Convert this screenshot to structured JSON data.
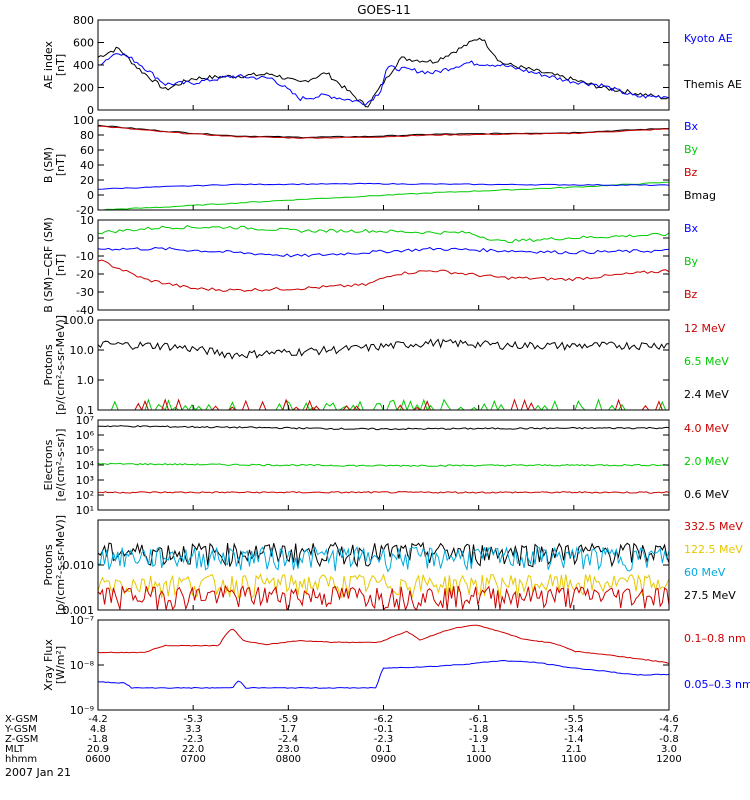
{
  "figure": {
    "title": "GOES-11",
    "date": "2007 Jan 21"
  },
  "chart_data": [
    {
      "type": "line",
      "id": "ae",
      "scale": "linear",
      "ylabel": [
        "AE index",
        "[nT]"
      ],
      "yticks": [
        "800",
        "600",
        "400",
        "200",
        "0"
      ],
      "ytick_values": [
        800,
        600,
        400,
        200,
        0
      ],
      "ylim": [
        0,
        800
      ],
      "series": [
        {
          "name": "Kyoto AE",
          "color": "#0000ff",
          "anchors": [
            [
              0,
              400
            ],
            [
              0.3,
              520
            ],
            [
              0.6,
              420
            ],
            [
              1,
              230
            ],
            [
              1.4,
              240
            ],
            [
              2,
              300
            ],
            [
              2.6,
              280
            ],
            [
              3,
              100
            ],
            [
              3.4,
              130
            ],
            [
              4,
              60
            ],
            [
              4.2,
              160
            ],
            [
              4.3,
              380
            ],
            [
              5,
              330
            ],
            [
              5.5,
              420
            ],
            [
              6,
              400
            ],
            [
              6.5,
              330
            ],
            [
              7,
              260
            ],
            [
              7.5,
              220
            ],
            [
              8,
              120
            ],
            [
              8.5,
              120
            ]
          ]
        },
        {
          "name": "Themis AE",
          "color": "#000000",
          "anchors": [
            [
              0,
              470
            ],
            [
              0.3,
              550
            ],
            [
              0.6,
              370
            ],
            [
              1,
              180
            ],
            [
              1.4,
              280
            ],
            [
              2,
              300
            ],
            [
              2.6,
              320
            ],
            [
              3,
              240
            ],
            [
              3.4,
              330
            ],
            [
              4,
              30
            ],
            [
              4.2,
              200
            ],
            [
              4.5,
              460
            ],
            [
              5,
              430
            ],
            [
              5.4,
              550
            ],
            [
              5.7,
              650
            ],
            [
              6,
              420
            ],
            [
              6.5,
              350
            ],
            [
              7,
              280
            ],
            [
              7.5,
              200
            ],
            [
              8,
              150
            ],
            [
              8.5,
              100
            ]
          ]
        }
      ]
    },
    {
      "type": "line",
      "id": "b",
      "scale": "linear",
      "ylabel": [
        "B (SM)",
        "[nT]"
      ],
      "yticks": [
        "100",
        "80",
        "60",
        "40",
        "20",
        "0",
        "-20"
      ],
      "ytick_values": [
        100,
        80,
        60,
        40,
        20,
        0,
        -20
      ],
      "ylim": [
        -20,
        100
      ],
      "series": [
        {
          "name": "Bx",
          "color": "#0000ff",
          "anchors": [
            [
              0,
              8
            ],
            [
              2,
              14
            ],
            [
              4,
              15
            ],
            [
              6,
              14
            ],
            [
              8.5,
              13
            ]
          ]
        },
        {
          "name": "By",
          "color": "#00cc00",
          "anchors": [
            [
              0,
              -20
            ],
            [
              1,
              -16
            ],
            [
              3,
              -6
            ],
            [
              5,
              3
            ],
            [
              7,
              10
            ],
            [
              8.5,
              17
            ]
          ]
        },
        {
          "name": "Bz",
          "color": "#cc0000",
          "anchors": [
            [
              0,
              92
            ],
            [
              1,
              84
            ],
            [
              2,
              78
            ],
            [
              3,
              76
            ],
            [
              4,
              77
            ],
            [
              5,
              80
            ],
            [
              6,
              81
            ],
            [
              7,
              82
            ],
            [
              8.5,
              88
            ]
          ]
        },
        {
          "name": "Bmag",
          "color": "#000000",
          "anchors": [
            [
              0,
              93
            ],
            [
              1,
              85
            ],
            [
              2,
              79
            ],
            [
              3,
              77
            ],
            [
              4,
              78
            ],
            [
              5,
              81
            ],
            [
              6,
              82
            ],
            [
              7,
              83
            ],
            [
              8.5,
              89
            ]
          ]
        }
      ]
    },
    {
      "type": "line",
      "id": "bdiff",
      "scale": "linear",
      "ylabel": [
        "B (SM)−CRF (SM)",
        "[nT]"
      ],
      "yticks": [
        "10",
        "0",
        "-10",
        "-20",
        "-30",
        "-40"
      ],
      "ytick_values": [
        10,
        0,
        -10,
        -20,
        -30,
        -40
      ],
      "ylim": [
        -40,
        10
      ],
      "series": [
        {
          "name": "Bx",
          "color": "#0000ff",
          "anchors": [
            [
              0,
              -6
            ],
            [
              1,
              -6
            ],
            [
              2,
              -8
            ],
            [
              3,
              -10
            ],
            [
              4,
              -8
            ],
            [
              5,
              -6
            ],
            [
              6,
              -7
            ],
            [
              7,
              -8
            ],
            [
              8.5,
              -7
            ]
          ]
        },
        {
          "name": "By",
          "color": "#00cc00",
          "anchors": [
            [
              0,
              3
            ],
            [
              1,
              6
            ],
            [
              2,
              6
            ],
            [
              3,
              4
            ],
            [
              4,
              4
            ],
            [
              5,
              3
            ],
            [
              5.5,
              3
            ],
            [
              6,
              -2
            ],
            [
              7,
              0
            ],
            [
              8.5,
              2
            ]
          ]
        },
        {
          "name": "Bz",
          "color": "#cc0000",
          "anchors": [
            [
              0,
              -12
            ],
            [
              0.7,
              -23
            ],
            [
              1.4,
              -28
            ],
            [
              2,
              -29
            ],
            [
              3,
              -28
            ],
            [
              4,
              -26
            ],
            [
              4.4,
              -20
            ],
            [
              5,
              -18
            ],
            [
              6,
              -22
            ],
            [
              7,
              -23
            ],
            [
              8.5,
              -18
            ]
          ]
        }
      ]
    },
    {
      "type": "line",
      "id": "hep",
      "scale": "log",
      "ylabel": [
        "Protons",
        "[p/(cm²-s-sr-MeV)]"
      ],
      "yticks": [
        "100.0",
        "10.0",
        "1.0",
        "0.1"
      ],
      "ytick_values": [
        100,
        10,
        1,
        0.1
      ],
      "ylim": [
        0.1,
        100
      ],
      "series": [
        {
          "name": "12 MeV",
          "color": "#cc0000",
          "anchors": [
            [
              0,
              0.1
            ],
            [
              8.5,
              0.1
            ]
          ]
        },
        {
          "name": "6.5 MeV",
          "color": "#00cc00",
          "anchors": [
            [
              0,
              0.1
            ],
            [
              8.5,
              0.1
            ]
          ]
        },
        {
          "name": "2.4 MeV",
          "color": "#000000",
          "anchors": [
            [
              0,
              16
            ],
            [
              1,
              14
            ],
            [
              2,
              7
            ],
            [
              3,
              9
            ],
            [
              4,
              12
            ],
            [
              5,
              18
            ],
            [
              6,
              15
            ],
            [
              7,
              14
            ],
            [
              8.5,
              15
            ]
          ]
        }
      ]
    },
    {
      "type": "line",
      "id": "el",
      "scale": "log",
      "ylabel": [
        "Electrons",
        "[e/(cm²-s-sr)]"
      ],
      "yticks": [
        "10⁷",
        "10⁶",
        "10⁵",
        "10⁴",
        "10³",
        "10²",
        "10¹"
      ],
      "ytick_values": [
        10000000,
        1000000,
        100000,
        10000,
        1000,
        100,
        10
      ],
      "ylim": [
        10,
        10000000
      ],
      "series": [
        {
          "name": "4.0 MeV",
          "color": "#cc0000",
          "anchors": [
            [
              0,
              150
            ],
            [
              8.5,
              150
            ]
          ]
        },
        {
          "name": "2.0 MeV",
          "color": "#00cc00",
          "anchors": [
            [
              0,
              12000
            ],
            [
              4,
              9000
            ],
            [
              8.5,
              10000
            ]
          ]
        },
        {
          "name": "0.6 MeV",
          "color": "#000000",
          "anchors": [
            [
              0,
              4000000
            ],
            [
              4,
              2500000
            ],
            [
              8.5,
              3000000
            ]
          ]
        }
      ]
    },
    {
      "type": "line",
      "id": "lep",
      "scale": "log",
      "ylabel": [
        "Protons",
        "[p/(cm²-s-sr-MeV)]"
      ],
      "yticks": [
        "0.010",
        "0.001"
      ],
      "ytick_values": [
        0.01,
        0.001
      ],
      "ylim": [
        0.001,
        0.1
      ],
      "series": [
        {
          "name": "332.5 MeV",
          "color": "#cc0000",
          "anchors": [
            [
              0,
              0.0022
            ],
            [
              8.5,
              0.0022
            ]
          ]
        },
        {
          "name": "122.5 MeV",
          "color": "#e6c800",
          "anchors": [
            [
              0,
              0.004
            ],
            [
              8.5,
              0.004
            ]
          ]
        },
        {
          "name": "60 MeV",
          "color": "#00aadd",
          "anchors": [
            [
              0,
              0.016
            ],
            [
              8.5,
              0.016
            ]
          ]
        },
        {
          "name": "27.5 MeV",
          "color": "#000000",
          "anchors": [
            [
              0,
              0.02
            ],
            [
              8.5,
              0.02
            ]
          ]
        }
      ]
    },
    {
      "type": "line",
      "id": "xray",
      "scale": "log",
      "ylabel": [
        "Xray Flux",
        "[W/m²]"
      ],
      "yticks": [
        "10⁻⁷",
        "10⁻⁸",
        "10⁻⁹"
      ],
      "ytick_values": [
        1e-07,
        1e-08,
        1e-09
      ],
      "ylim": [
        1e-09,
        1e-07
      ],
      "series": [
        {
          "name": "0.1–0.8 nm",
          "color": "#cc0000",
          "anchors": [
            [
              0,
              1.9e-08
            ],
            [
              0.7,
              1.9e-08
            ],
            [
              1,
              2.7e-08
            ],
            [
              1.8,
              2.7e-08
            ],
            [
              2,
              6.5e-08
            ],
            [
              2.15,
              3.5e-08
            ],
            [
              2.5,
              2.8e-08
            ],
            [
              3,
              3.5e-08
            ],
            [
              3.5,
              3.2e-08
            ],
            [
              4.2,
              3.2e-08
            ],
            [
              4.6,
              5.5e-08
            ],
            [
              4.8,
              3.5e-08
            ],
            [
              5.3,
              6.5e-08
            ],
            [
              5.6,
              7.8e-08
            ],
            [
              5.9,
              6e-08
            ],
            [
              6.3,
              3.8e-08
            ],
            [
              6.8,
              3e-08
            ],
            [
              7.1,
              2e-08
            ],
            [
              8,
              1.4e-08
            ],
            [
              8.5,
              1.1e-08
            ]
          ]
        },
        {
          "name": "0.05–0.3 nm",
          "color": "#0000ff",
          "anchors": [
            [
              0,
              4.2e-09
            ],
            [
              0.4,
              4e-09
            ],
            [
              0.5,
              3.1e-09
            ],
            [
              2,
              3.1e-09
            ],
            [
              2.1,
              4.6e-09
            ],
            [
              2.2,
              3.1e-09
            ],
            [
              4.15,
              3.1e-09
            ],
            [
              4.25,
              8.5e-09
            ],
            [
              5,
              9.3e-09
            ],
            [
              5.5,
              1.05e-08
            ],
            [
              6,
              1.25e-08
            ],
            [
              6.5,
              1.15e-08
            ],
            [
              7,
              8.8e-09
            ],
            [
              8,
              6e-09
            ],
            [
              8.5,
              6.2e-09
            ]
          ]
        }
      ]
    }
  ],
  "axis": {
    "rows": [
      {
        "label": "X-GSM",
        "values": [
          "-4.2",
          "-5.3",
          "-5.9",
          "-6.2",
          "-6.1",
          "-5.5",
          "-4.6"
        ]
      },
      {
        "label": "Y-GSM",
        "values": [
          "4.8",
          "3.3",
          "1.7",
          "-0.1",
          "-1.8",
          "-3.4",
          "-4.7"
        ]
      },
      {
        "label": "Z-GSM",
        "values": [
          "-1.8",
          "-2.3",
          "-2.4",
          "-2.3",
          "-1.9",
          "-1.4",
          "-0.8"
        ]
      },
      {
        "label": "MLT",
        "values": [
          "20.9",
          "22.0",
          "23.0",
          "0.1",
          "1.1",
          "2.1",
          "3.0"
        ]
      },
      {
        "label": "hhmm",
        "values": [
          "0600",
          "0700",
          "0800",
          "0900",
          "1000",
          "1100",
          "1200"
        ]
      }
    ]
  }
}
